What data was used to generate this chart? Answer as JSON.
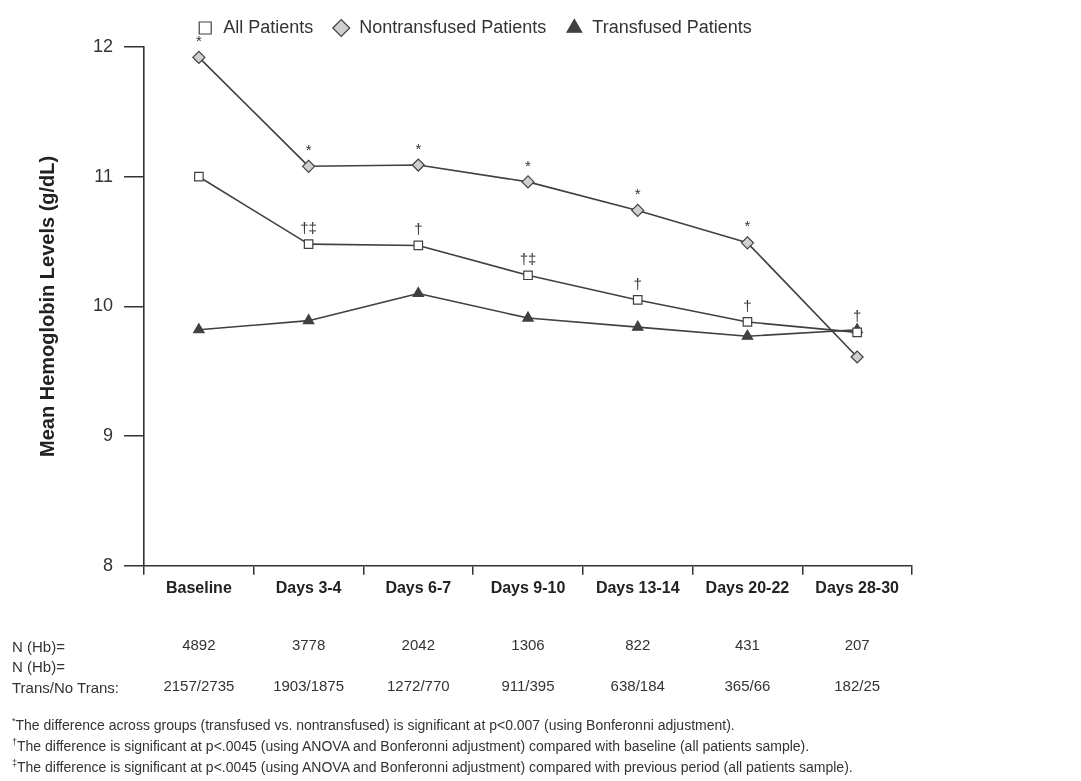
{
  "chart_data": {
    "type": "line",
    "ylabel": "Mean Hemoglobin Levels (g/dL)",
    "categories": [
      "Baseline",
      "Days 3-4",
      "Days 6-7",
      "Days 9-10",
      "Days 13-14",
      "Days 20-22",
      "Days 28-30"
    ],
    "series": [
      {
        "name": "All Patients",
        "color": "#404040",
        "marker": "square",
        "values": [
          11.0,
          10.48,
          10.47,
          10.24,
          10.05,
          9.88,
          9.8
        ]
      },
      {
        "name": "Nontransfused Patients",
        "color": "#404040",
        "marker": "diamond",
        "values": [
          11.92,
          11.08,
          11.09,
          10.96,
          10.74,
          10.49,
          9.61
        ]
      },
      {
        "name": "Transfused Patients",
        "color": "#404040",
        "marker": "triangle",
        "values": [
          9.82,
          9.89,
          10.1,
          9.91,
          9.84,
          9.77,
          9.82
        ]
      }
    ],
    "ylim": [
      8,
      12
    ],
    "yticks": [
      8,
      9,
      10,
      11,
      12
    ],
    "grid": false,
    "legend": "top",
    "annotations": [
      {
        "text": "*",
        "x": "Baseline",
        "y": 11.92
      },
      {
        "text": "*",
        "x": "Days 3-4",
        "y": 11.08
      },
      {
        "text": "*",
        "x": "Days 6-7",
        "y": 11.09
      },
      {
        "text": "*",
        "x": "Days 9-10",
        "y": 10.96
      },
      {
        "text": "*",
        "x": "Days 13-14",
        "y": 10.74
      },
      {
        "text": "*",
        "x": "Days 20-22",
        "y": 10.49
      },
      {
        "text": "†‡",
        "x": "Days 3-4",
        "y": 10.48
      },
      {
        "text": "†",
        "x": "Days 6-7",
        "y": 10.47
      },
      {
        "text": "†‡",
        "x": "Days 9-10",
        "y": 10.24
      },
      {
        "text": "†",
        "x": "Days 13-14",
        "y": 10.05
      },
      {
        "text": "†",
        "x": "Days 20-22",
        "y": 9.88
      },
      {
        "text": "†",
        "x": "Days 28-30",
        "y": 9.8
      },
      "N (Hb)=",
      "4892",
      "3778",
      "2042",
      "1306",
      "822",
      "431",
      "207",
      "N (Hb)=\nTrans/No Trans:",
      "2157/2735",
      "1903/1875",
      "1272/770",
      "911/395",
      "638/184",
      "365/66",
      "182/25",
      "$^{*}$The difference across groups (transfused vs. nontransfused) is significant at p<0.007 (using Bonferonni adjustment).",
      "$^{†}$The difference is significant at p<.0045 (using ANOVA and Bonferonni adjustment) compared with baseline (all patients sample).",
      "$^{‡}$The difference is significant at p<.0045 (using ANOVA and Bonferonni adjustment) compared with previous period (all patients sample)."
    ]
  }
}
